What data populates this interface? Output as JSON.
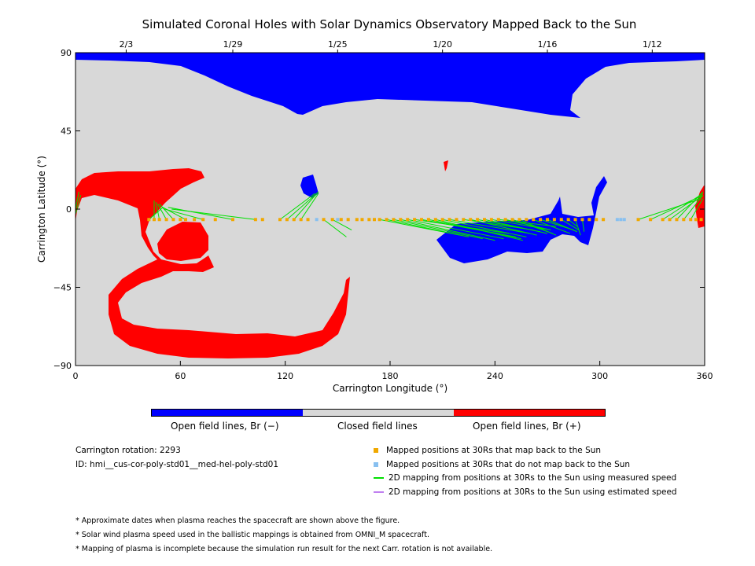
{
  "chart_data": {
    "type": "map",
    "title": "Simulated Coronal Holes with Solar Dynamics Observatory Mapped Back to the Sun",
    "xlabel": "Carrington Longitude (°)",
    "ylabel": "Carrington Latitude (°)",
    "xlim": [
      0,
      360
    ],
    "ylim": [
      -90,
      90
    ],
    "x_ticks": [
      "0",
      "60",
      "120",
      "180",
      "240",
      "300",
      "360"
    ],
    "y_ticks": [
      "90",
      "45",
      "0",
      "-45",
      "-90"
    ],
    "top_axis_dates": [
      {
        "label": "2/3",
        "lon": 29
      },
      {
        "label": "1/29",
        "lon": 90
      },
      {
        "label": "1/25",
        "lon": 150
      },
      {
        "label": "1/20",
        "lon": 210
      },
      {
        "label": "1/16",
        "lon": 270
      },
      {
        "label": "1/12",
        "lon": 330
      }
    ],
    "colors": {
      "open_negative": "#0000ff",
      "closed": "#d8d8d8",
      "open_positive": "#ff0000",
      "mapped": "#f0a800",
      "not_mapped": "#88c0f0",
      "measured_speed": "#00e000",
      "estimated_speed": "#c080f0"
    },
    "mapped_positions_lon": [
      42,
      45,
      48,
      52,
      56,
      60,
      63,
      68,
      73,
      80,
      90,
      103,
      107,
      117,
      121,
      125,
      129,
      133,
      142,
      147,
      152,
      156,
      161,
      164,
      168,
      171,
      174,
      178,
      182,
      186,
      190,
      194,
      198,
      202,
      206,
      210,
      214,
      218,
      222,
      226,
      230,
      234,
      238,
      242,
      246,
      250,
      254,
      258,
      262,
      266,
      270,
      274,
      278,
      282,
      286,
      290,
      294,
      298,
      302,
      322,
      329,
      336,
      340,
      344,
      348,
      352,
      355,
      358
    ],
    "unmapped_positions_lon": [
      138,
      150,
      310,
      312,
      314
    ],
    "measured_lines": [
      [
        42,
        -6,
        50,
        1
      ],
      [
        45,
        -6,
        45,
        5
      ],
      [
        48,
        -6,
        46,
        4
      ],
      [
        52,
        -6,
        47,
        3
      ],
      [
        56,
        -6,
        48,
        3
      ],
      [
        63,
        -6,
        50,
        1
      ],
      [
        73,
        -6,
        51,
        0
      ],
      [
        90,
        -6,
        53,
        1
      ],
      [
        103,
        -6,
        55,
        0
      ],
      [
        117,
        -6,
        137,
        9
      ],
      [
        121,
        -6,
        138,
        9
      ],
      [
        125,
        -6,
        139,
        10
      ],
      [
        129,
        -6,
        139,
        9
      ],
      [
        142,
        -6,
        155,
        -16
      ],
      [
        147,
        -6,
        158,
        -12
      ],
      [
        174,
        -6,
        220,
        -15
      ],
      [
        178,
        -6,
        225,
        -16
      ],
      [
        182,
        -6,
        233,
        -17
      ],
      [
        186,
        -6,
        240,
        -18
      ],
      [
        190,
        -6,
        245,
        -17
      ],
      [
        194,
        -6,
        248,
        -14
      ],
      [
        198,
        -6,
        252,
        -16
      ],
      [
        202,
        -6,
        255,
        -17
      ],
      [
        206,
        -6,
        256,
        -18
      ],
      [
        210,
        -6,
        258,
        -16
      ],
      [
        214,
        -6,
        260,
        -14
      ],
      [
        222,
        -6,
        262,
        -12
      ],
      [
        226,
        -6,
        264,
        -15
      ],
      [
        230,
        -6,
        266,
        -13
      ],
      [
        234,
        -6,
        270,
        -14
      ],
      [
        238,
        -6,
        272,
        -12
      ],
      [
        242,
        -6,
        275,
        -10
      ],
      [
        246,
        -6,
        272,
        -12
      ],
      [
        250,
        -6,
        273,
        -14
      ],
      [
        254,
        -6,
        275,
        -15
      ],
      [
        262,
        -6,
        283,
        -14
      ],
      [
        266,
        -6,
        285,
        -12
      ],
      [
        270,
        -6,
        287,
        -13
      ],
      [
        278,
        -6,
        288,
        -12
      ],
      [
        282,
        -6,
        287,
        -10
      ],
      [
        286,
        -6,
        289,
        -15
      ],
      [
        290,
        -6,
        291,
        -13
      ],
      [
        322,
        -6,
        358,
        6
      ],
      [
        329,
        -6,
        359,
        8
      ],
      [
        336,
        -6,
        359,
        9
      ],
      [
        340,
        -6,
        359,
        8
      ],
      [
        344,
        -6,
        359,
        10
      ],
      [
        348,
        -6,
        359,
        8
      ],
      [
        352,
        -6,
        359,
        6
      ],
      [
        0,
        -3,
        3,
        8
      ],
      [
        0,
        0,
        2,
        10
      ]
    ]
  },
  "colorbar": {
    "labels": [
      "Open field lines, Br (−)",
      "Closed field lines",
      "Open field lines, Br (+)"
    ]
  },
  "info": {
    "rotation": "Carrington rotation: 2293",
    "id": "ID: hmi__cus-cor-poly-std01__med-hel-poly-std01"
  },
  "legend": {
    "mapped": "Mapped positions at 30Rs that map back to the Sun",
    "not_mapped": "Mapped positions at 30Rs that do not map back to the Sun",
    "measured": "2D mapping from positions at 30Rs to the Sun using measured speed",
    "estimated": "2D mapping from positions at 30Rs to the Sun using estimated speed"
  },
  "notes": [
    "* Approximate dates when plasma reaches the spacecraft are shown above the figure.",
    "* Solar wind plasma speed used in the ballistic mappings is obtained from OMNI_M spacecraft.",
    "* Mapping of plasma is incomplete because the simulation run result for the next Carr. rotation is not available."
  ]
}
